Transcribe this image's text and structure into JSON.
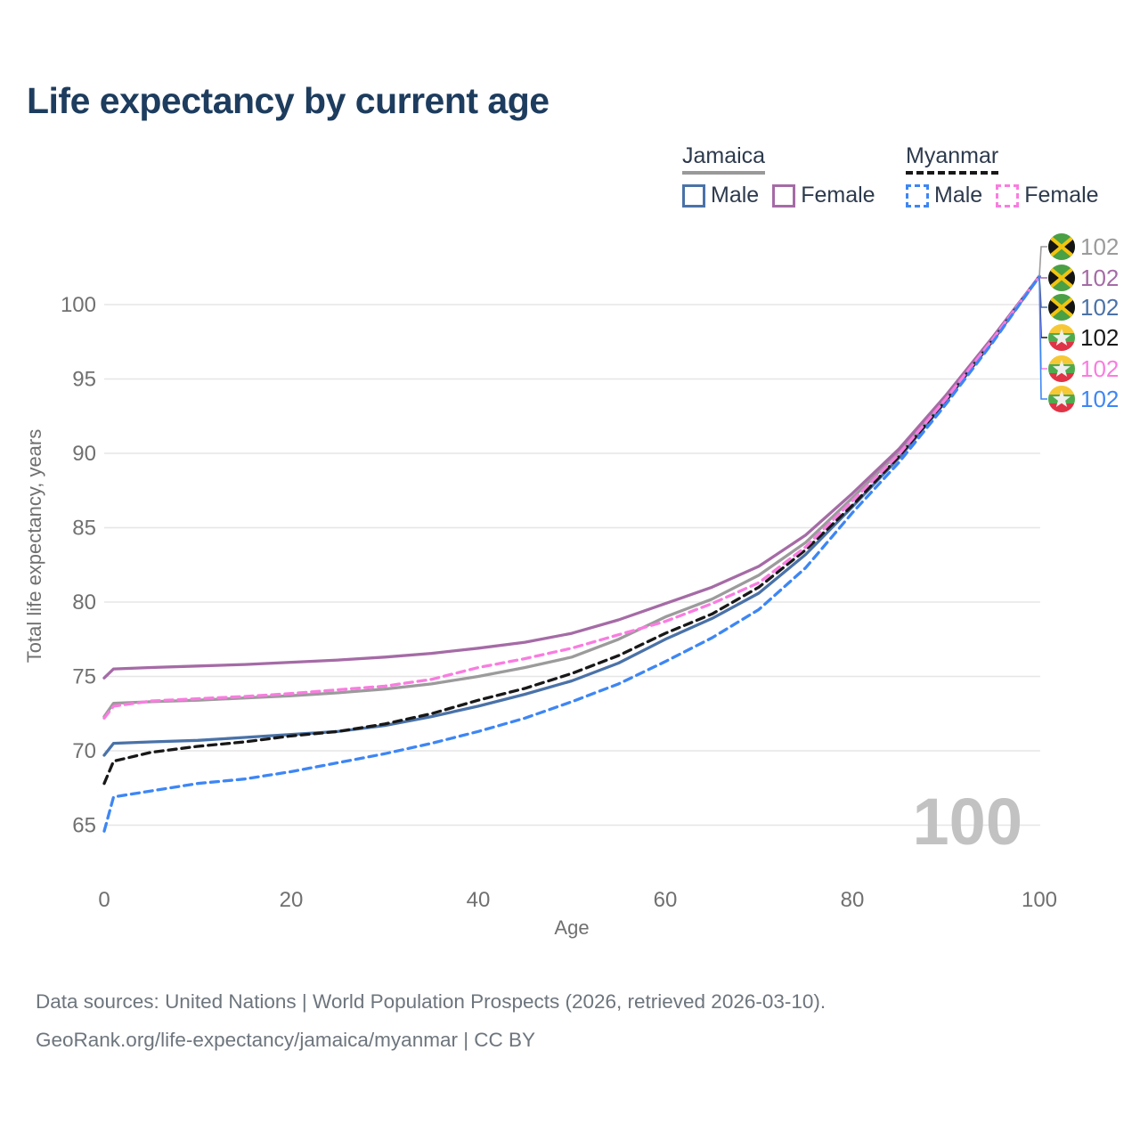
{
  "header": {
    "title": "Life expectancy by current age"
  },
  "legend": {
    "groups": [
      {
        "country": "Jamaica",
        "underline_style": "solid",
        "underline_color": "#999999",
        "items": [
          {
            "label": "Male",
            "swatch_color": "#4a72a8",
            "swatch_style": "solid"
          },
          {
            "label": "Female",
            "swatch_color": "#a56ba6",
            "swatch_style": "solid"
          }
        ]
      },
      {
        "country": "Myanmar",
        "underline_style": "dashed",
        "underline_color": "#181818",
        "items": [
          {
            "label": "Male",
            "swatch_color": "#3d86f5",
            "swatch_style": "dashed"
          },
          {
            "label": "Female",
            "swatch_color": "#fa7ce0",
            "swatch_style": "dashed"
          }
        ]
      }
    ]
  },
  "chart_data": {
    "type": "line",
    "title": "Life expectancy by current age",
    "xlabel": "Age",
    "ylabel": "Total life expectancy, years",
    "xlim": [
      0,
      100
    ],
    "ylim": [
      63.5,
      103
    ],
    "xticks": [
      0,
      20,
      40,
      60,
      80,
      100
    ],
    "yticks": [
      65,
      70,
      75,
      80,
      85,
      90,
      95,
      100
    ],
    "grid": "horizontal-only",
    "legend_position": "top-right",
    "watermark": "100",
    "x": [
      0,
      1,
      5,
      10,
      15,
      20,
      25,
      30,
      35,
      40,
      45,
      50,
      55,
      60,
      65,
      70,
      75,
      80,
      85,
      90,
      95,
      100
    ],
    "series": [
      {
        "id": "jamaica-all",
        "name": "Jamaica (both sexes)",
        "country": "Jamaica",
        "sex": "all",
        "color": "#9b9b9b",
        "dash": false,
        "values": [
          72.3,
          73.2,
          73.3,
          73.4,
          73.55,
          73.7,
          73.9,
          74.15,
          74.5,
          75.0,
          75.6,
          76.3,
          77.5,
          79.0,
          80.2,
          81.8,
          84.0,
          87.0,
          90.1,
          93.75,
          97.7,
          101.9
        ]
      },
      {
        "id": "jamaica-female",
        "name": "Jamaica Female",
        "country": "Jamaica",
        "sex": "female",
        "color": "#a56ba6",
        "dash": false,
        "values": [
          74.9,
          75.5,
          75.6,
          75.7,
          75.8,
          75.95,
          76.1,
          76.3,
          76.55,
          76.9,
          77.3,
          77.9,
          78.8,
          79.9,
          81.0,
          82.4,
          84.5,
          87.3,
          90.3,
          93.9,
          97.8,
          101.9
        ]
      },
      {
        "id": "jamaica-male",
        "name": "Jamaica Male",
        "country": "Jamaica",
        "sex": "male",
        "color": "#4a72a8",
        "dash": false,
        "values": [
          69.7,
          70.5,
          70.6,
          70.7,
          70.9,
          71.1,
          71.3,
          71.7,
          72.3,
          73.0,
          73.8,
          74.7,
          75.9,
          77.5,
          78.9,
          80.6,
          83.2,
          86.4,
          89.7,
          93.5,
          97.55,
          101.9
        ]
      },
      {
        "id": "myanmar-all",
        "name": "Myanmar (both sexes)",
        "country": "Myanmar",
        "sex": "all",
        "color": "#181818",
        "dash": true,
        "values": [
          67.8,
          69.3,
          69.9,
          70.3,
          70.6,
          71.0,
          71.3,
          71.8,
          72.5,
          73.4,
          74.2,
          75.2,
          76.4,
          77.9,
          79.2,
          81.0,
          83.5,
          86.5,
          89.8,
          93.55,
          97.6,
          101.9
        ]
      },
      {
        "id": "myanmar-female",
        "name": "Myanmar Female",
        "country": "Myanmar",
        "sex": "female",
        "color": "#fa7ce0",
        "dash": true,
        "values": [
          72.2,
          73.0,
          73.35,
          73.5,
          73.65,
          73.85,
          74.1,
          74.35,
          74.8,
          75.6,
          76.2,
          76.9,
          77.8,
          78.7,
          79.9,
          81.3,
          83.7,
          86.8,
          89.95,
          93.65,
          97.65,
          101.9
        ]
      },
      {
        "id": "myanmar-male",
        "name": "Myanmar Male",
        "country": "Myanmar",
        "sex": "male",
        "color": "#3d86f5",
        "dash": true,
        "values": [
          64.6,
          66.9,
          67.3,
          67.8,
          68.1,
          68.6,
          69.2,
          69.8,
          70.5,
          71.3,
          72.2,
          73.3,
          74.5,
          76.0,
          77.6,
          79.5,
          82.3,
          86.0,
          89.4,
          93.3,
          97.45,
          101.9
        ]
      }
    ]
  },
  "endpoint_labels": [
    {
      "flag": "jamaica-flag",
      "value": "102",
      "color": "#9b9b9b"
    },
    {
      "flag": "jamaica-flag",
      "value": "102",
      "color": "#a56ba6"
    },
    {
      "flag": "jamaica-flag",
      "value": "102",
      "color": "#4a72a8"
    },
    {
      "flag": "myanmar-flag",
      "value": "102",
      "color": "#181818"
    },
    {
      "flag": "myanmar-flag",
      "value": "102",
      "color": "#fa7ce0"
    },
    {
      "flag": "myanmar-flag",
      "value": "102",
      "color": "#3d86f5"
    }
  ],
  "footer": {
    "line1": "Data sources: United Nations | World Population Prospects (2026, retrieved 2026-03-10).",
    "line2": "GeoRank.org/life-expectancy/jamaica/myanmar | CC BY"
  }
}
